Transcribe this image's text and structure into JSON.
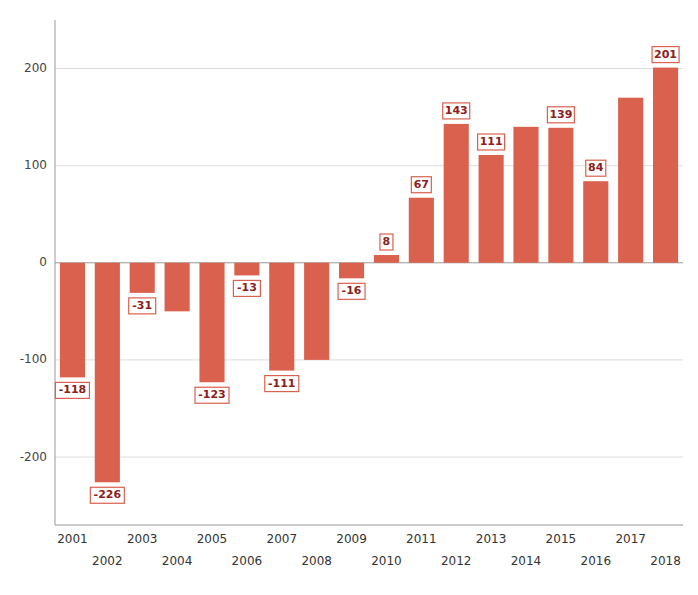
{
  "chart_data": {
    "type": "bar",
    "categories": [
      "2001",
      "2002",
      "2003",
      "2004",
      "2005",
      "2006",
      "2007",
      "2008",
      "2009",
      "2010",
      "2011",
      "2012",
      "2013",
      "2014",
      "2015",
      "2016",
      "2017",
      "2018"
    ],
    "values": [
      -118,
      -226,
      -31,
      -50,
      -123,
      -13,
      -111,
      -100,
      -16,
      8,
      67,
      143,
      111,
      140,
      139,
      84,
      170,
      201
    ],
    "data_labels": true,
    "value_labels": [
      "-118",
      "-226",
      "-31",
      null,
      "-123",
      "-13",
      "-111",
      null,
      "-16",
      "8",
      "67",
      "143",
      "111",
      null,
      "139",
      "84",
      null,
      "201"
    ],
    "color": "#d9614e",
    "ylim": [
      -270,
      250
    ],
    "yticks": [
      -200,
      -100,
      0,
      100,
      200
    ],
    "grid": true
  }
}
